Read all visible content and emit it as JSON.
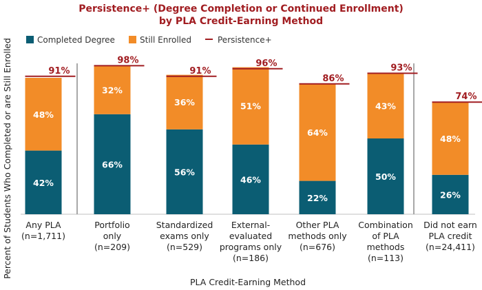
{
  "chart_data": {
    "type": "bar",
    "stacked": true,
    "title_lines": [
      "Persistence+ (Degree Completion or Continued Enrollment)",
      "by PLA Credit-Earning Method"
    ],
    "xlabel": "PLA Credit-Earning Method",
    "ylabel": "Percent of Students Who Completed or are Still Enrolled",
    "ylim": [
      0,
      100
    ],
    "legend": {
      "placement": "top-left",
      "entries": [
        "Completed Degree",
        "Still Enrolled",
        "Persistence+"
      ]
    },
    "categories": [
      [
        "Any PLA",
        "(n=1,711)"
      ],
      [
        "Portfolio",
        "only",
        "(n=209)"
      ],
      [
        "Standardized",
        "exams only",
        "(n=529)"
      ],
      [
        "External-",
        "evaluated",
        "programs only",
        "(n=186)"
      ],
      [
        "Other PLA",
        "methods only",
        "(n=676)"
      ],
      [
        "Combination",
        "of PLA",
        "methods",
        "(n=113)"
      ],
      [
        "Did not earn",
        "PLA credit",
        "(n=24,411)"
      ]
    ],
    "series": [
      {
        "name": "Completed Degree",
        "values": [
          42,
          66,
          56,
          46,
          22,
          50,
          26
        ],
        "labels": [
          "42%",
          "66%",
          "56%",
          "46%",
          "22%",
          "50%",
          "26%"
        ]
      },
      {
        "name": "Still Enrolled",
        "values": [
          48,
          32,
          36,
          51,
          64,
          43,
          48
        ],
        "labels": [
          "48%",
          "32%",
          "36%",
          "51%",
          "64%",
          "43%",
          "48%"
        ]
      }
    ],
    "persistence": {
      "name": "Persistence+",
      "values": [
        91,
        98,
        91,
        96,
        86,
        93,
        74
      ],
      "labels": [
        "91%",
        "98%",
        "91%",
        "96%",
        "86%",
        "93%",
        "74%"
      ]
    },
    "separators_after": [
      0,
      5
    ],
    "colors": {
      "completed": "#0b5d73",
      "enrolled": "#f28c28",
      "persistence": "#a11d21",
      "title": "#a11d21"
    }
  }
}
